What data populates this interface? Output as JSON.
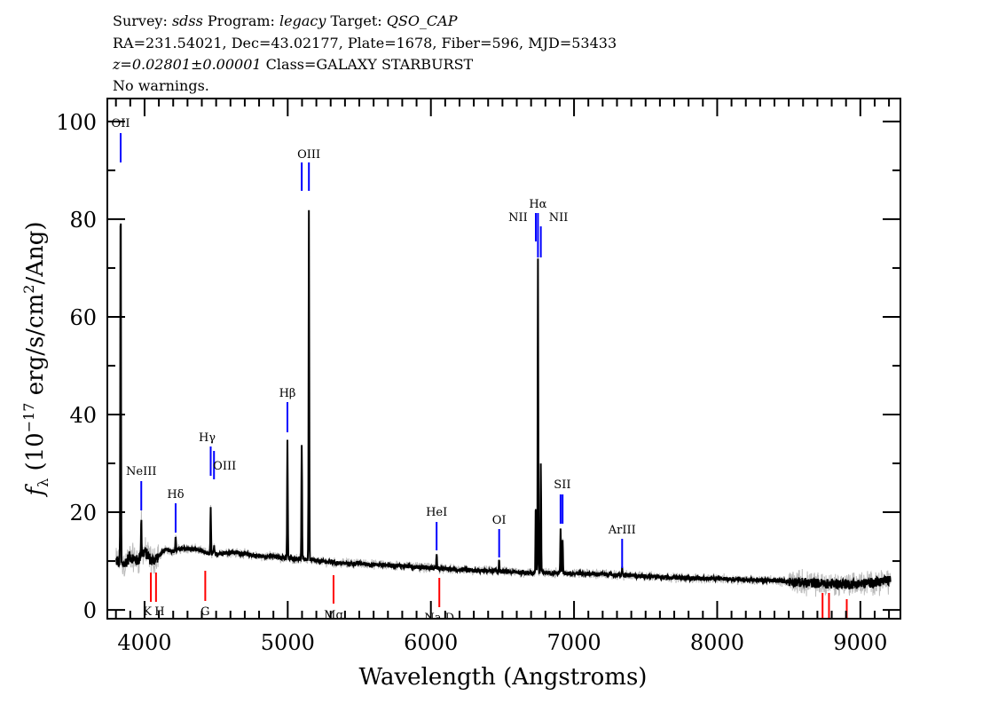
{
  "header": {
    "line1": {
      "survey_label": "Survey: ",
      "survey": "sdss",
      "program_label": " Program: ",
      "program": "legacy",
      "target_label": " Target: ",
      "target": "QSO_CAP"
    },
    "line2": "RA=231.54021, Dec=43.02177, Plate=1678, Fiber=596, MJD=53433",
    "line3": {
      "redshift": "z=0.02801±0.00001",
      "class": " Class=GALAXY STARBURST"
    },
    "line4": "No warnings."
  },
  "chart_data": {
    "type": "line",
    "xlabel": "Wavelength (Angstroms)",
    "ylabel": "f_λ (10^-17 erg/s/cm^2/Ang)",
    "xlim": [
      3740,
      9280
    ],
    "ylim": [
      -1.8,
      104.7
    ],
    "xticks": [
      4000,
      5000,
      6000,
      7000,
      8000,
      9000
    ],
    "yticks": [
      0,
      20,
      40,
      60,
      80,
      100
    ],
    "grid": false,
    "colors": {
      "flux": "#000000",
      "error": "#bbbbbb",
      "emission": "#0000ff",
      "absorption": "#ff0000"
    },
    "continuum": {
      "wavelength": [
        3810,
        3850,
        3900,
        3950,
        4000,
        4050,
        4100,
        4150,
        4200,
        4250,
        4300,
        4350,
        4400,
        4450,
        4500,
        4600,
        4700,
        4800,
        4900,
        5000,
        5100,
        5200,
        5300,
        5400,
        5500,
        5600,
        5700,
        5800,
        5900,
        6000,
        6100,
        6200,
        6300,
        6400,
        6500,
        6600,
        6700,
        6800,
        6900,
        7000,
        7200,
        7400,
        7600,
        7800,
        8000,
        8200,
        8400,
        8600,
        8800,
        9000,
        9200
      ],
      "flux": [
        10,
        9,
        11,
        10,
        12,
        10,
        11,
        12.5,
        12,
        12.5,
        12.5,
        12.5,
        12,
        11.5,
        11.5,
        11.8,
        11.5,
        11,
        11,
        10.5,
        10.5,
        10,
        9.8,
        9.5,
        9.5,
        9.3,
        9.2,
        9,
        8.8,
        8.6,
        8.4,
        8.2,
        8,
        8,
        7.8,
        7.7,
        7.6,
        7.6,
        7.6,
        7.5,
        7.3,
        7,
        6.8,
        6.5,
        6.4,
        6.2,
        6,
        5.6,
        5.3,
        5.3,
        6
      ]
    },
    "emission_lines": [
      {
        "label": "OII",
        "wavelength": 3833,
        "peak": 87
      },
      {
        "label": "NeIII",
        "wavelength": 3977,
        "peak": 19
      },
      {
        "label": "Hδ",
        "wavelength": 4217,
        "peak": 15
      },
      {
        "label": "Hγ",
        "wavelength": 4462,
        "peak": 21
      },
      {
        "label": "OIII",
        "wavelength": 4485,
        "peak": 13
      },
      {
        "label": "Hβ",
        "wavelength": 4998,
        "peak": 35
      },
      {
        "label": "OIII",
        "wavelength": 5098,
        "peak": 34
      },
      {
        "label": "OIII",
        "wavelength": 5148,
        "peak": 81.5
      },
      {
        "label": "HeI",
        "wavelength": 6040,
        "peak": 11.5
      },
      {
        "label": "OI",
        "wavelength": 6477,
        "peak": 10.5
      },
      {
        "label": "NII",
        "wavelength": 6733,
        "peak": 22
      },
      {
        "label": "Hα",
        "wavelength": 6748,
        "peak": 72
      },
      {
        "label": "NII",
        "wavelength": 6768,
        "peak": 30
      },
      {
        "label": "SII",
        "wavelength": 6906,
        "peak": 17
      },
      {
        "label": "SII",
        "wavelength": 6920,
        "peak": 14.5
      },
      {
        "label": "ArIII",
        "wavelength": 7336,
        "peak": 8.5
      }
    ],
    "absorption_lines": [
      {
        "label": "K",
        "wavelength": 4044
      },
      {
        "label": "H",
        "wavelength": 4080
      },
      {
        "label": "G",
        "wavelength": 4424
      },
      {
        "label": "Mg",
        "wavelength": 5320
      },
      {
        "label": "Na D",
        "wavelength": 6059
      },
      {
        "label": "",
        "wavelength": 8736
      },
      {
        "label": "",
        "wavelength": 8781
      },
      {
        "label": "",
        "wavelength": 8905
      }
    ]
  }
}
